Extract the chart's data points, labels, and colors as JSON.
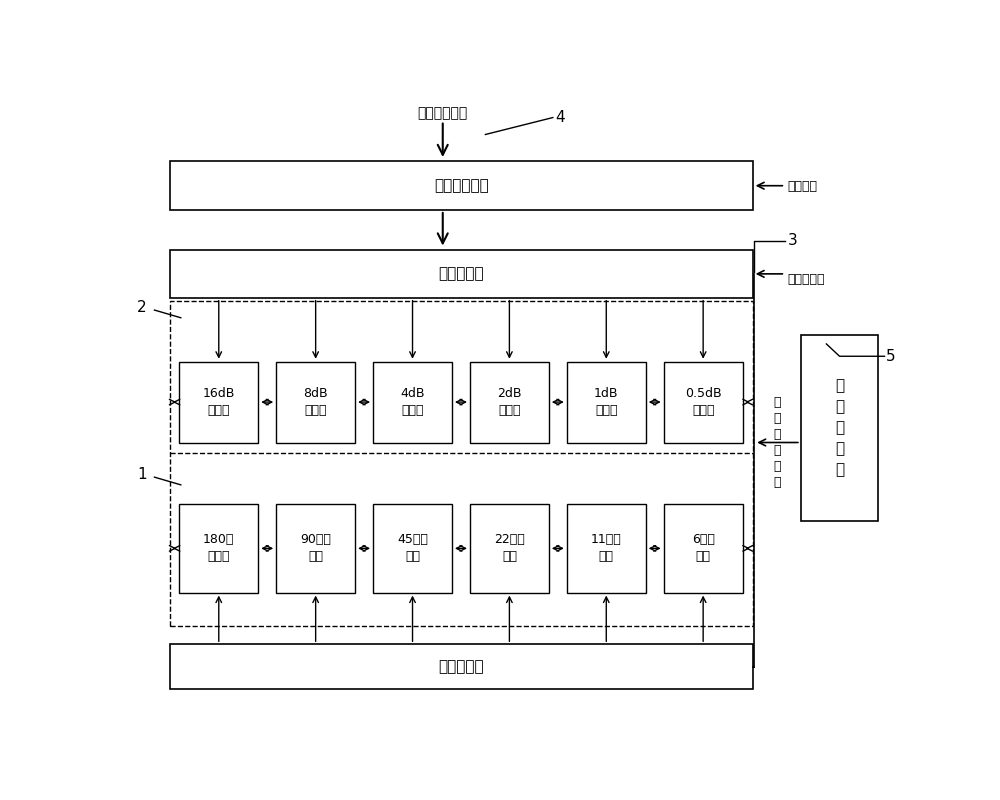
{
  "bg_color": "#ffffff",
  "fig_width": 10.0,
  "fig_height": 8.0,
  "label_control_input": "控制信号输入",
  "label_digital_power": "数字电源",
  "label_driver_power": "驱动器电源",
  "label_analog_voltage": "模\n拟\n电\n压\n输\n出",
  "label_digital_ctrl": "数字控制单元",
  "label_driver_array_top": "驱动器阵列",
  "label_driver_array_bot": "驱动器阵列",
  "label_temp_sensor": "温\n度\n传\n感\n器",
  "label_4": "4",
  "label_3": "3",
  "label_2": "2",
  "label_1": "1",
  "label_5": "5",
  "attenuators": [
    "16dB\n衰减器",
    "8dB\n衰减器",
    "4dB\n衰减器",
    "2dB\n衰减器",
    "1dB\n衰减器",
    "0.5dB\n衰减器"
  ],
  "phase_shifters": [
    "180度\n移相器",
    "90度移\n相器",
    "45度移\n相器",
    "22度移\n相器",
    "11度移\n相器",
    "6度移\n相器"
  ]
}
